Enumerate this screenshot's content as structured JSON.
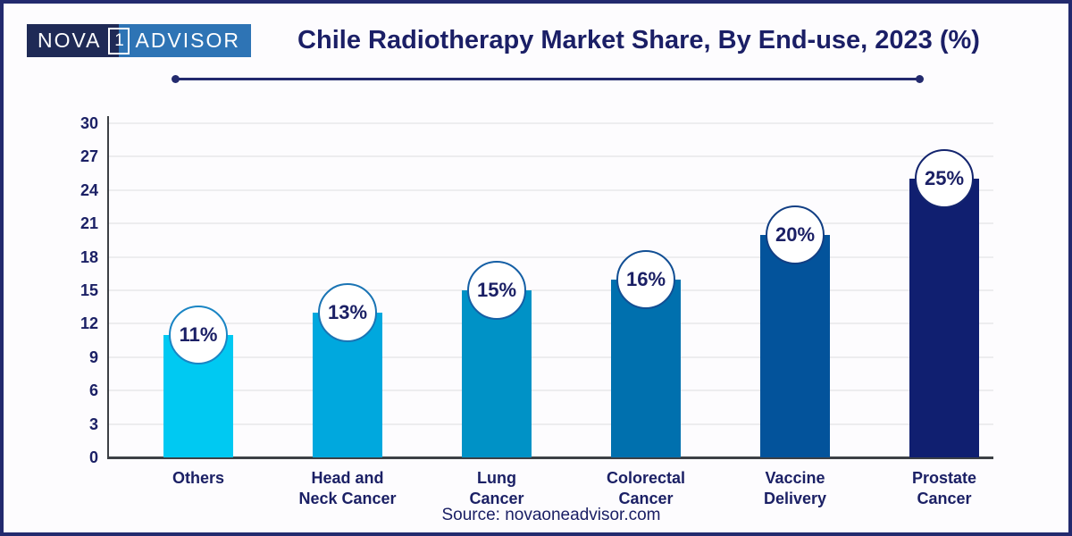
{
  "logo": {
    "nova": "NOVA",
    "one": "1",
    "advisor": "ADVISOR"
  },
  "title": "Chile Radiotherapy Market Share, By End-use, 2023 (%)",
  "source": "Source: novaoneadvisor.com",
  "colors": {
    "border_navy": "#232a6e",
    "text_navy": "#1b2065",
    "logo_dark": "#1f2a56",
    "logo_blue": "#2e74b5",
    "axis": "#3d4045",
    "grid": "#ededef"
  },
  "chart_data": {
    "type": "bar",
    "title": "Chile Radiotherapy Market Share, By End-use, 2023 (%)",
    "categories": [
      "Others",
      "Head and Neck Cancer",
      "Lung Cancer",
      "Colorectal Cancer",
      "Vaccine Delivery",
      "Prostate Cancer"
    ],
    "tick_lines": [
      [
        "Others"
      ],
      [
        "Head and",
        "Neck Cancer"
      ],
      [
        "Lung",
        "Cancer"
      ],
      [
        "Colorectal",
        "Cancer"
      ],
      [
        "Vaccine",
        "Delivery"
      ],
      [
        "Prostate",
        "Cancer"
      ]
    ],
    "values": [
      11,
      13,
      15,
      16,
      20,
      25
    ],
    "value_suffix": "%",
    "bar_colors": [
      "#00c9f2",
      "#00a8de",
      "#0092c6",
      "#0070ae",
      "#03539b",
      "#101f70"
    ],
    "badge_border_colors": [
      "#1a85c4",
      "#1a74b4",
      "#155fa5",
      "#124f94",
      "#123f84",
      "#13246e"
    ],
    "xlabel": "",
    "ylabel": "",
    "ylim": [
      0,
      30
    ],
    "yticks": [
      0,
      3,
      6,
      9,
      12,
      15,
      18,
      21,
      24,
      27,
      30
    ],
    "grid": "horizontal",
    "legend": "none"
  }
}
